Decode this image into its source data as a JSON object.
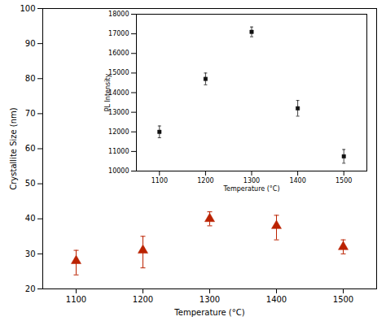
{
  "chart_data": [
    {
      "type": "errorbar",
      "x": [
        1100,
        1200,
        1300,
        1400,
        1500
      ],
      "values": [
        28,
        31,
        40,
        38,
        32
      ],
      "error_lower": [
        4,
        5,
        2,
        4,
        2
      ],
      "error_upper": [
        3,
        4,
        2,
        3,
        2
      ],
      "color": "#bb2200",
      "marker": "triangle",
      "xlabel": "Temperature (°C)",
      "ylabel": "Crystallite Size (nm)",
      "xlim": [
        1050,
        1550
      ],
      "ylim": [
        20,
        100
      ],
      "xticks": [
        1100,
        1200,
        1300,
        1400,
        1500
      ],
      "yticks": [
        20,
        30,
        40,
        50,
        60,
        70,
        80,
        90,
        100
      ],
      "grid": false
    },
    {
      "type": "errorbar",
      "x": [
        1100,
        1200,
        1300,
        1400,
        1500
      ],
      "values": [
        12000,
        14700,
        17100,
        13200,
        10750
      ],
      "error": [
        300,
        300,
        250,
        400,
        350
      ],
      "color": "#111111",
      "marker": "square",
      "xlabel": "Temperature (°C)",
      "ylabel": "PL Intensity",
      "xlim": [
        1050,
        1550
      ],
      "ylim": [
        10000,
        18000
      ],
      "xticks": [
        1100,
        1200,
        1300,
        1400,
        1500
      ],
      "yticks": [
        10000,
        11000,
        12000,
        13000,
        14000,
        15000,
        16000,
        17000,
        18000
      ],
      "grid": false
    }
  ]
}
